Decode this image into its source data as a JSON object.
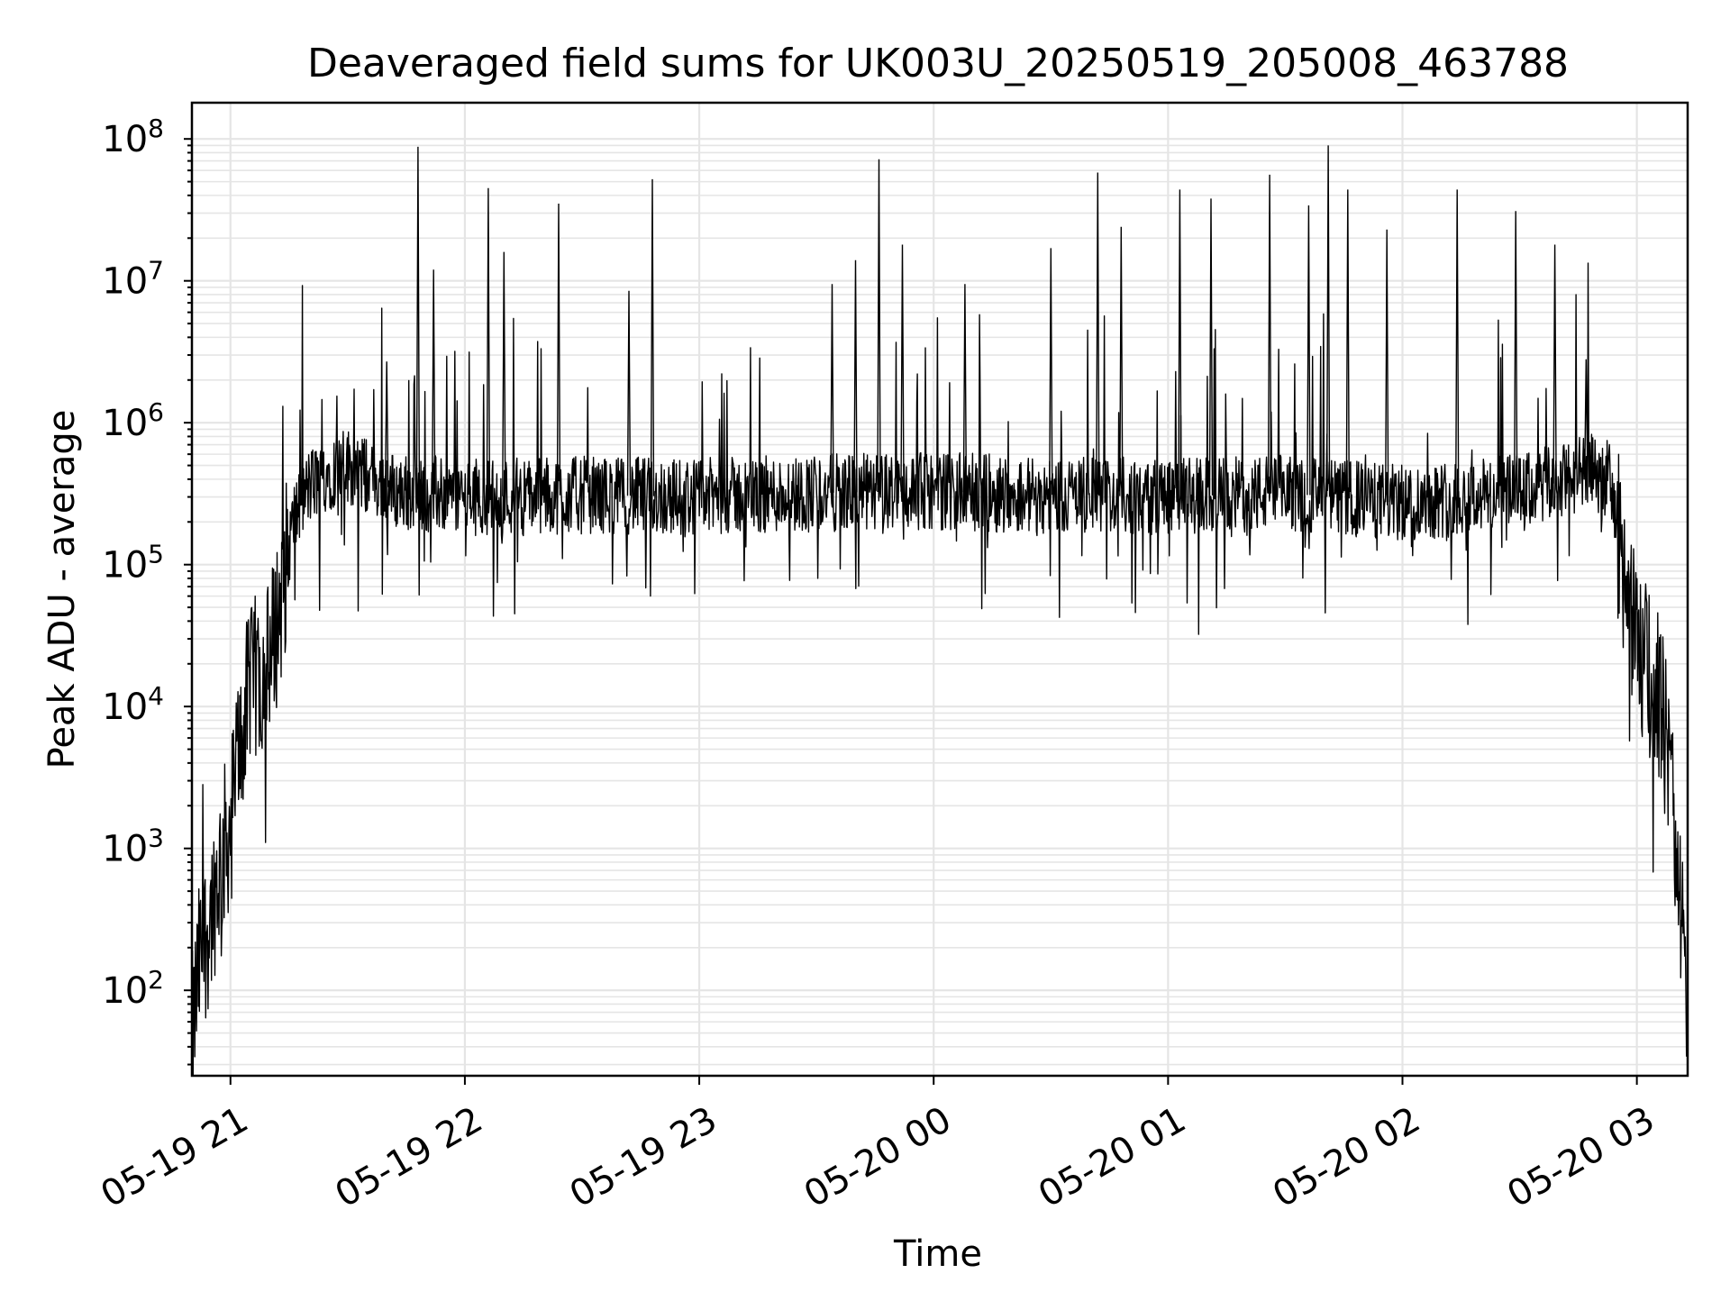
{
  "chart_data": {
    "type": "line",
    "title": "Deaveraged field sums for UK003U_20250519_205008_463788",
    "xlabel": "Time",
    "ylabel": "Peak ADU - average",
    "yscale": "log",
    "ylim": [
      25,
      180000000
    ],
    "xlim": [
      "2025-05-19 20:50:08",
      "2025-05-20 03:13:00"
    ],
    "grid": true,
    "line_color": "#000000",
    "grid_color": "#e5e5e5",
    "xticks": [
      {
        "time": "2025-05-19 21:00",
        "label": "05-19 21"
      },
      {
        "time": "2025-05-19 22:00",
        "label": "05-19 22"
      },
      {
        "time": "2025-05-19 23:00",
        "label": "05-19 23"
      },
      {
        "time": "2025-05-20 00:00",
        "label": "05-20 00"
      },
      {
        "time": "2025-05-20 01:00",
        "label": "05-20 01"
      },
      {
        "time": "2025-05-20 02:00",
        "label": "05-20 02"
      },
      {
        "time": "2025-05-20 03:00",
        "label": "05-20 03"
      }
    ],
    "yticks": [
      {
        "exp": 2,
        "base": "10",
        "sup": "2"
      },
      {
        "exp": 3,
        "base": "10",
        "sup": "3"
      },
      {
        "exp": 4,
        "base": "10",
        "sup": "4"
      },
      {
        "exp": 5,
        "base": "10",
        "sup": "5"
      },
      {
        "exp": 6,
        "base": "10",
        "sup": "6"
      },
      {
        "exp": 7,
        "base": "10",
        "sup": "7"
      },
      {
        "exp": 8,
        "base": "10",
        "sup": "8"
      }
    ],
    "series": [
      {
        "x": [
          "2025-05-19 20:50",
          "2025-05-19 20:52",
          "2025-05-19 20:55",
          "2025-05-19 20:57",
          "2025-05-19 21:00",
          "2025-05-19 21:03",
          "2025-05-19 21:06",
          "2025-05-19 21:10",
          "2025-05-19 21:13",
          "2025-05-19 21:16",
          "2025-05-19 21:20",
          "2025-05-19 21:25",
          "2025-05-19 21:30",
          "2025-05-19 21:36",
          "2025-05-19 21:42",
          "2025-05-19 21:48",
          "2025-05-19 22:00",
          "2025-05-19 22:30",
          "2025-05-19 23:00",
          "2025-05-19 23:30",
          "2025-05-20 00:00",
          "2025-05-20 00:30",
          "2025-05-20 01:00",
          "2025-05-20 01:30",
          "2025-05-20 02:00",
          "2025-05-20 02:15",
          "2025-05-20 02:30",
          "2025-05-20 02:40",
          "2025-05-20 02:48",
          "2025-05-20 02:53",
          "2025-05-20 02:57",
          "2025-05-20 03:00",
          "2025-05-20 03:03",
          "2025-05-20 03:06",
          "2025-05-20 03:09",
          "2025-05-20 03:11",
          "2025-05-20 03:12",
          "2025-05-20 03:13"
        ],
        "y": [
          40,
          150,
          350,
          700,
          1500,
          8000,
          15000,
          20000,
          60000,
          200000,
          350000,
          450000,
          500000,
          400000,
          330000,
          320000,
          300000,
          310000,
          300000,
          320000,
          330000,
          310000,
          300000,
          320000,
          270000,
          300000,
          320000,
          380000,
          450000,
          400000,
          80000,
          25000,
          18000,
          12000,
          2500,
          600,
          150,
          40
        ],
        "spikes": [
          {
            "x": "2025-05-19 21:40",
            "y": 2700000
          },
          {
            "x": "2025-05-19 21:48",
            "y": 88000000
          },
          {
            "x": "2025-05-19 21:52",
            "y": 12000000
          },
          {
            "x": "2025-05-19 22:06",
            "y": 45000000
          },
          {
            "x": "2025-05-19 22:10",
            "y": 16000000
          },
          {
            "x": "2025-05-19 22:24",
            "y": 35000000
          },
          {
            "x": "2025-05-19 22:42",
            "y": 8500000
          },
          {
            "x": "2025-05-19 22:48",
            "y": 52000000
          },
          {
            "x": "2025-05-19 23:34",
            "y": 9500000
          },
          {
            "x": "2025-05-19 23:40",
            "y": 14000000
          },
          {
            "x": "2025-05-19 23:46",
            "y": 72000000
          },
          {
            "x": "2025-05-19 23:52",
            "y": 18000000
          },
          {
            "x": "2025-05-20 00:08",
            "y": 9500000
          },
          {
            "x": "2025-05-20 00:30",
            "y": 17000000
          },
          {
            "x": "2025-05-20 00:42",
            "y": 58000000
          },
          {
            "x": "2025-05-20 00:48",
            "y": 24000000
          },
          {
            "x": "2025-05-20 01:03",
            "y": 44000000
          },
          {
            "x": "2025-05-20 01:11",
            "y": 38000000
          },
          {
            "x": "2025-05-20 01:26",
            "y": 56000000
          },
          {
            "x": "2025-05-20 01:36",
            "y": 34000000
          },
          {
            "x": "2025-05-20 01:41",
            "y": 90000000
          },
          {
            "x": "2025-05-20 01:46",
            "y": 44000000
          },
          {
            "x": "2025-05-20 01:56",
            "y": 23000000
          },
          {
            "x": "2025-05-20 02:14",
            "y": 44000000
          },
          {
            "x": "2025-05-20 02:29",
            "y": 31000000
          },
          {
            "x": "2025-05-20 02:39",
            "y": 18000000
          },
          {
            "x": "2025-05-20 02:47",
            "y": 2800000
          }
        ]
      }
    ]
  }
}
